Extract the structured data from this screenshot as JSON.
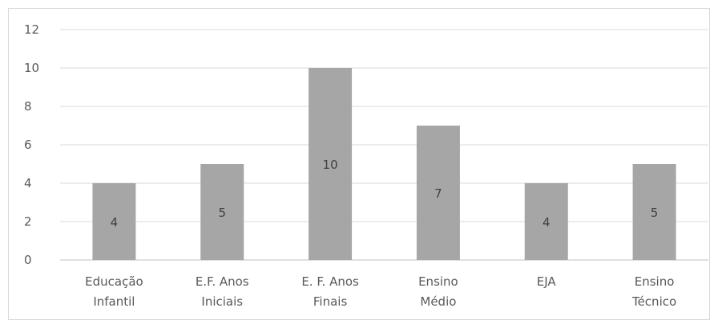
{
  "chart_data": {
    "type": "bar",
    "categories": [
      [
        "Educação",
        "Infantil"
      ],
      [
        "E.F. Anos",
        "Iniciais"
      ],
      [
        "E. F. Anos",
        "Finais"
      ],
      [
        "Ensino",
        "Médio"
      ],
      [
        "EJA"
      ],
      [
        "Ensino",
        "Técnico"
      ]
    ],
    "values": [
      4,
      5,
      10,
      7,
      4,
      5
    ],
    "data_labels": [
      "4",
      "5",
      "10",
      "7",
      "4",
      "5"
    ],
    "ylim": [
      0,
      12
    ],
    "yticks": [
      "0",
      "2",
      "4",
      "6",
      "8",
      "10",
      "12"
    ],
    "grid": true,
    "legend": "none",
    "bar_color": "#a6a6a6"
  }
}
